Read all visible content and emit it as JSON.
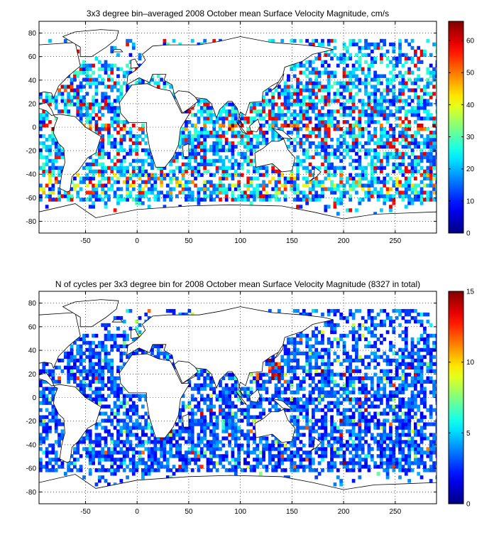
{
  "chart_data": [
    {
      "type": "heatmap",
      "title": "3x3 degree bin–averaged 2008 October mean Surface Velocity Magnitude, cm/s",
      "xlim": [
        -95,
        290
      ],
      "ylim": [
        -90,
        90
      ],
      "xticks": [
        -50,
        0,
        50,
        100,
        150,
        200,
        250
      ],
      "yticks": [
        -80,
        -60,
        -40,
        -20,
        0,
        20,
        40,
        60,
        80
      ],
      "grid": true,
      "bin_size_deg": 3,
      "colorbar": {
        "min": 0,
        "max": 66,
        "ticks": [
          0,
          10,
          20,
          30,
          40,
          50,
          60
        ],
        "colormap": "jet"
      },
      "typical_value": 18
    },
    {
      "type": "heatmap",
      "title": "N of cycles per 3x3 degree bin for 2008 October mean Surface Velocity Magnitude (8327 in total)",
      "xlim": [
        -95,
        290
      ],
      "ylim": [
        -90,
        90
      ],
      "xticks": [
        -50,
        0,
        50,
        100,
        150,
        200,
        250
      ],
      "yticks": [
        -80,
        -60,
        -40,
        -20,
        0,
        20,
        40,
        60,
        80
      ],
      "grid": true,
      "bin_size_deg": 3,
      "total_cycles": 8327,
      "colorbar": {
        "min": 0,
        "max": 15,
        "ticks": [
          0,
          5,
          10,
          15
        ],
        "colormap": "jet"
      },
      "typical_value": 3
    }
  ]
}
